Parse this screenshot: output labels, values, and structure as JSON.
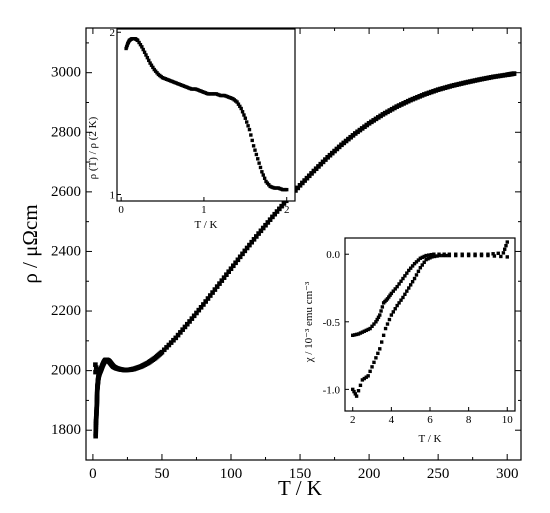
{
  "chart_data": [
    {
      "id": "main",
      "type": "scatter",
      "xlabel": "T / K",
      "ylabel": "ρ / μΩcm",
      "xlim": [
        -5,
        310
      ],
      "ylim": [
        1700,
        3150
      ],
      "xticks": [
        "0",
        "50",
        "100",
        "150",
        "200",
        "250",
        "300"
      ],
      "yticks": [
        "1800",
        "2000",
        "2200",
        "2400",
        "2600",
        "2800",
        "3000"
      ],
      "marker": "square",
      "color": "#000000",
      "points": [
        [
          2,
          1780
        ],
        [
          2.2,
          1820
        ],
        [
          2.5,
          1850
        ],
        [
          2.8,
          1880
        ],
        [
          3,
          1910
        ],
        [
          3.2,
          1940
        ],
        [
          3.5,
          1955
        ],
        [
          3.8,
          1970
        ],
        [
          4.2,
          1982
        ],
        [
          4.8,
          1992
        ],
        [
          5.5,
          2000
        ],
        [
          6.2,
          2008
        ],
        [
          7,
          2018
        ],
        [
          8,
          2028
        ],
        [
          9,
          2035
        ],
        [
          10,
          2036
        ],
        [
          11,
          2034
        ],
        [
          12,
          2030
        ],
        [
          13,
          2024
        ],
        [
          14,
          2018
        ],
        [
          15,
          2013
        ],
        [
          17,
          2008
        ],
        [
          20,
          2004
        ],
        [
          23,
          2002
        ],
        [
          27,
          2003
        ],
        [
          30,
          2006
        ],
        [
          35,
          2014
        ],
        [
          40,
          2026
        ],
        [
          45,
          2042
        ],
        [
          50,
          2062
        ],
        [
          60,
          2110
        ],
        [
          70,
          2165
        ],
        [
          80,
          2222
        ],
        [
          90,
          2282
        ],
        [
          100,
          2342
        ],
        [
          110,
          2402
        ],
        [
          120,
          2460
        ],
        [
          130,
          2516
        ],
        [
          140,
          2570
        ],
        [
          150,
          2622
        ],
        [
          160,
          2670
        ],
        [
          170,
          2716
        ],
        [
          180,
          2758
        ],
        [
          190,
          2796
        ],
        [
          200,
          2830
        ],
        [
          210,
          2860
        ],
        [
          220,
          2886
        ],
        [
          230,
          2908
        ],
        [
          240,
          2927
        ],
        [
          250,
          2943
        ],
        [
          260,
          2956
        ],
        [
          270,
          2967
        ],
        [
          280,
          2977
        ],
        [
          290,
          2986
        ],
        [
          300,
          2993
        ],
        [
          305,
          2997
        ]
      ],
      "extra_points": [
        [
          1.8,
          2020
        ],
        [
          2.4,
          2010
        ],
        [
          1.9,
          1995
        ]
      ]
    },
    {
      "id": "inset-upper",
      "type": "scatter",
      "xlabel": "T / K",
      "ylabel": "ρ (T) / ρ (2 K)",
      "xlim": [
        -0.05,
        2.1
      ],
      "ylim": [
        0.96,
        2.02
      ],
      "xticks": [
        "0",
        "1",
        "2"
      ],
      "yticks": [
        "1",
        "2"
      ],
      "marker": "square",
      "color": "#000000",
      "points": [
        [
          0.06,
          1.9
        ],
        [
          0.08,
          1.93
        ],
        [
          0.1,
          1.95
        ],
        [
          0.13,
          1.96
        ],
        [
          0.17,
          1.96
        ],
        [
          0.2,
          1.95
        ],
        [
          0.25,
          1.91
        ],
        [
          0.3,
          1.86
        ],
        [
          0.35,
          1.81
        ],
        [
          0.4,
          1.77
        ],
        [
          0.45,
          1.74
        ],
        [
          0.5,
          1.72
        ],
        [
          0.55,
          1.71
        ],
        [
          0.6,
          1.7
        ],
        [
          0.65,
          1.69
        ],
        [
          0.7,
          1.68
        ],
        [
          0.75,
          1.67
        ],
        [
          0.8,
          1.66
        ],
        [
          0.85,
          1.65
        ],
        [
          0.9,
          1.65
        ],
        [
          0.95,
          1.64
        ],
        [
          1,
          1.63
        ],
        [
          1.05,
          1.62
        ],
        [
          1.1,
          1.62
        ],
        [
          1.15,
          1.62
        ],
        [
          1.2,
          1.61
        ],
        [
          1.25,
          1.61
        ],
        [
          1.3,
          1.6
        ],
        [
          1.35,
          1.59
        ],
        [
          1.4,
          1.57
        ],
        [
          1.45,
          1.53
        ],
        [
          1.5,
          1.47
        ],
        [
          1.55,
          1.4
        ],
        [
          1.6,
          1.3
        ],
        [
          1.65,
          1.22
        ],
        [
          1.7,
          1.14
        ],
        [
          1.75,
          1.08
        ],
        [
          1.8,
          1.05
        ],
        [
          1.85,
          1.04
        ],
        [
          1.9,
          1.04
        ],
        [
          1.95,
          1.03
        ],
        [
          2,
          1.03
        ]
      ]
    },
    {
      "id": "inset-lower",
      "type": "scatter",
      "xlabel": "T / K",
      "ylabel": "χ / 10⁻³ emu cm⁻³",
      "xlim": [
        1.6,
        10.4
      ],
      "ylim": [
        -1.16,
        0.12
      ],
      "xticks": [
        "2",
        "4",
        "6",
        "8",
        "10"
      ],
      "yticks": [
        "0.0",
        "-0.5",
        "-1.0"
      ],
      "marker": "square",
      "color": "#000000",
      "series": [
        {
          "values": [
            [
              2,
              -0.6
            ],
            [
              2.3,
              -0.59
            ],
            [
              2.6,
              -0.57
            ],
            [
              2.9,
              -0.55
            ],
            [
              3.2,
              -0.5
            ],
            [
              3.4,
              -0.45
            ],
            [
              3.6,
              -0.36
            ],
            [
              3.8,
              -0.33
            ],
            [
              4,
              -0.29
            ],
            [
              4.3,
              -0.24
            ],
            [
              4.6,
              -0.18
            ],
            [
              4.9,
              -0.12
            ],
            [
              5.2,
              -0.07
            ],
            [
              5.5,
              -0.03
            ],
            [
              5.8,
              -0.01
            ],
            [
              6.2,
              0
            ],
            [
              7,
              0
            ],
            [
              8,
              0
            ],
            [
              9,
              0
            ],
            [
              9.8,
              0.01
            ],
            [
              10,
              0.09
            ]
          ]
        },
        {
          "values": [
            [
              2,
              -1.0
            ],
            [
              2.2,
              -1.05
            ],
            [
              2.5,
              -0.93
            ],
            [
              2.8,
              -0.9
            ],
            [
              3.1,
              -0.8
            ],
            [
              3.4,
              -0.7
            ],
            [
              3.7,
              -0.55
            ],
            [
              4,
              -0.45
            ],
            [
              4.3,
              -0.38
            ],
            [
              4.6,
              -0.32
            ],
            [
              4.9,
              -0.25
            ],
            [
              5.2,
              -0.18
            ],
            [
              5.5,
              -0.1
            ],
            [
              5.8,
              -0.04
            ],
            [
              6.1,
              -0.02
            ],
            [
              6.5,
              -0.01
            ],
            [
              7,
              -0.01
            ],
            [
              8,
              -0.01
            ],
            [
              9,
              -0.01
            ],
            [
              10,
              -0.02
            ]
          ]
        }
      ]
    }
  ]
}
